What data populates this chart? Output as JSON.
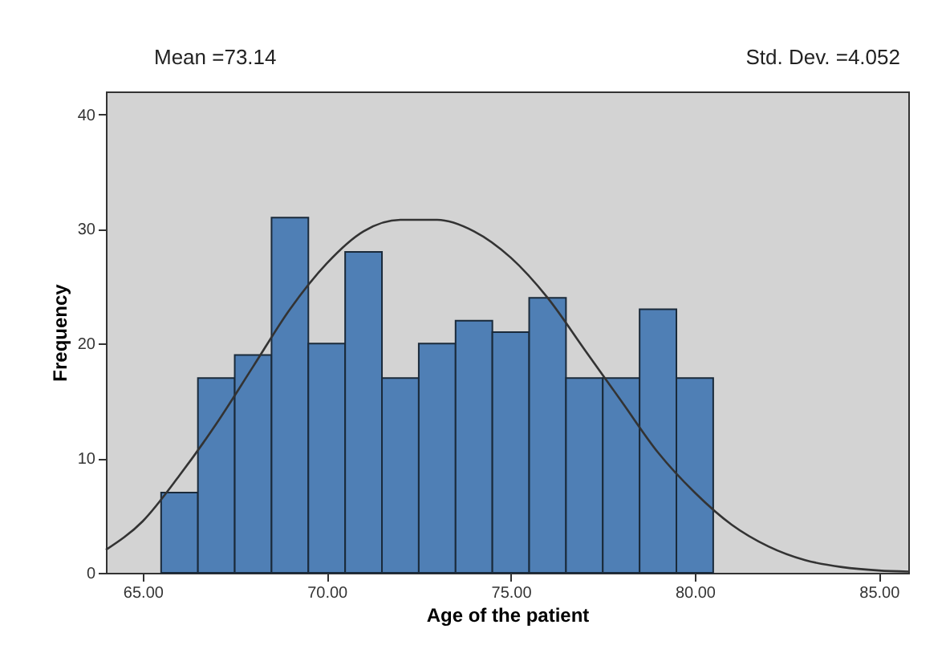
{
  "chart_data": {
    "type": "histogram",
    "xlabel": "Age of the patient",
    "ylabel": "Frequency",
    "annotations": [
      "Mean =73.14",
      "Std. Dev. =4.052"
    ],
    "bins": [
      65.5,
      66.5,
      67.5,
      68.5,
      69.5,
      70.5,
      71.5,
      72.5,
      73.5,
      74.5,
      75.5,
      76.5,
      77.5,
      78.5,
      79.5,
      80.5
    ],
    "values": [
      7,
      17,
      19,
      31,
      20,
      28,
      17,
      20,
      22,
      21,
      24,
      17,
      17,
      23,
      17
    ],
    "color": "#4f7fb5",
    "series": [
      {
        "type": "line",
        "color": "#333333",
        "x": [
          64,
          65,
          66,
          67,
          68,
          69,
          70,
          71,
          72,
          73,
          74,
          75,
          76,
          77,
          78,
          79,
          80,
          81,
          82,
          83,
          84,
          85,
          85.8
        ],
        "values": [
          2,
          4.5,
          8.5,
          13,
          18,
          23,
          27,
          29.8,
          30.8,
          30.8,
          29.8,
          27.5,
          24,
          19.5,
          15,
          10.5,
          7,
          4.2,
          2.3,
          1.1,
          0.5,
          0.2,
          0.1
        ]
      }
    ],
    "xlim": [
      64,
      85.8
    ],
    "ylim": [
      0,
      42
    ],
    "xticks": [
      {
        "value": 65,
        "label": "65.00"
      },
      {
        "value": 70,
        "label": "70.00"
      },
      {
        "value": 75,
        "label": "75.00"
      },
      {
        "value": 80,
        "label": "80.00"
      },
      {
        "value": 85,
        "label": "85.00"
      }
    ],
    "yticks": [
      0,
      10,
      20,
      30,
      40
    ],
    "grid": false
  }
}
